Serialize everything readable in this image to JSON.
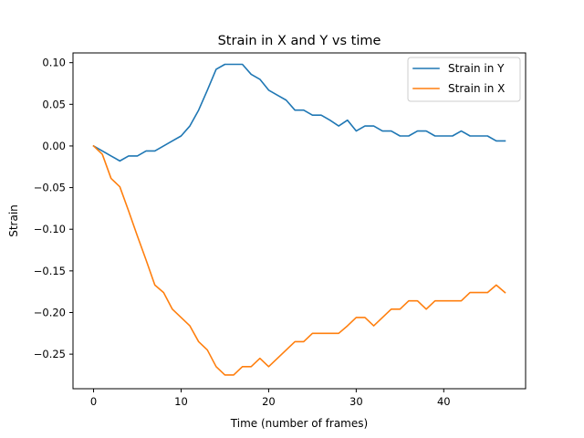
{
  "chart_data": {
    "type": "line",
    "title": "Strain in X and Y vs time",
    "xlabel": "Time (number of frames)",
    "ylabel": "Strain",
    "xlim": [
      -2.35,
      49.35
    ],
    "ylim": [
      -0.2915,
      0.1117
    ],
    "xticks": [
      0,
      10,
      20,
      30,
      40
    ],
    "yticks": [
      -0.25,
      -0.2,
      -0.15,
      -0.1,
      -0.05,
      0.0,
      0.05,
      0.1
    ],
    "ytick_labels": [
      "−0.25",
      "−0.20",
      "−0.15",
      "−0.10",
      "−0.05",
      "0.00",
      "0.05",
      "0.10"
    ],
    "grid": false,
    "legend_position": "top-right",
    "x": [
      0,
      1,
      2,
      3,
      4,
      5,
      6,
      7,
      8,
      9,
      10,
      11,
      12,
      13,
      14,
      15,
      16,
      17,
      18,
      19,
      20,
      21,
      22,
      23,
      24,
      25,
      26,
      27,
      28,
      29,
      30,
      31,
      32,
      33,
      34,
      35,
      36,
      37,
      38,
      39,
      40,
      41,
      42,
      43,
      44,
      45,
      46,
      47
    ],
    "series": [
      {
        "name": "Strain in Y",
        "color": "#1f77b4",
        "values": [
          0.0,
          -0.006,
          -0.012,
          -0.018,
          -0.012,
          -0.012,
          -0.006,
          -0.006,
          0.0,
          0.006,
          0.012,
          0.024,
          0.043,
          0.067,
          0.092,
          0.098,
          0.098,
          0.098,
          0.086,
          0.08,
          0.067,
          0.061,
          0.055,
          0.043,
          0.043,
          0.037,
          0.037,
          0.031,
          0.024,
          0.031,
          0.018,
          0.024,
          0.024,
          0.018,
          0.018,
          0.012,
          0.012,
          0.018,
          0.018,
          0.012,
          0.012,
          0.012,
          0.018,
          0.012,
          0.012,
          0.012,
          0.006,
          0.006
        ]
      },
      {
        "name": "Strain in X",
        "color": "#ff7f0e",
        "values": [
          0.0,
          -0.01,
          -0.039,
          -0.049,
          -0.078,
          -0.108,
          -0.137,
          -0.167,
          -0.176,
          -0.196,
          -0.206,
          -0.216,
          -0.235,
          -0.245,
          -0.265,
          -0.275,
          -0.275,
          -0.265,
          -0.265,
          -0.255,
          -0.265,
          -0.255,
          -0.245,
          -0.235,
          -0.235,
          -0.225,
          -0.225,
          -0.225,
          -0.225,
          -0.216,
          -0.206,
          -0.206,
          -0.216,
          -0.206,
          -0.196,
          -0.196,
          -0.186,
          -0.186,
          -0.196,
          -0.186,
          -0.186,
          -0.186,
          -0.186,
          -0.176,
          -0.176,
          -0.176,
          -0.167,
          -0.176
        ]
      }
    ]
  }
}
